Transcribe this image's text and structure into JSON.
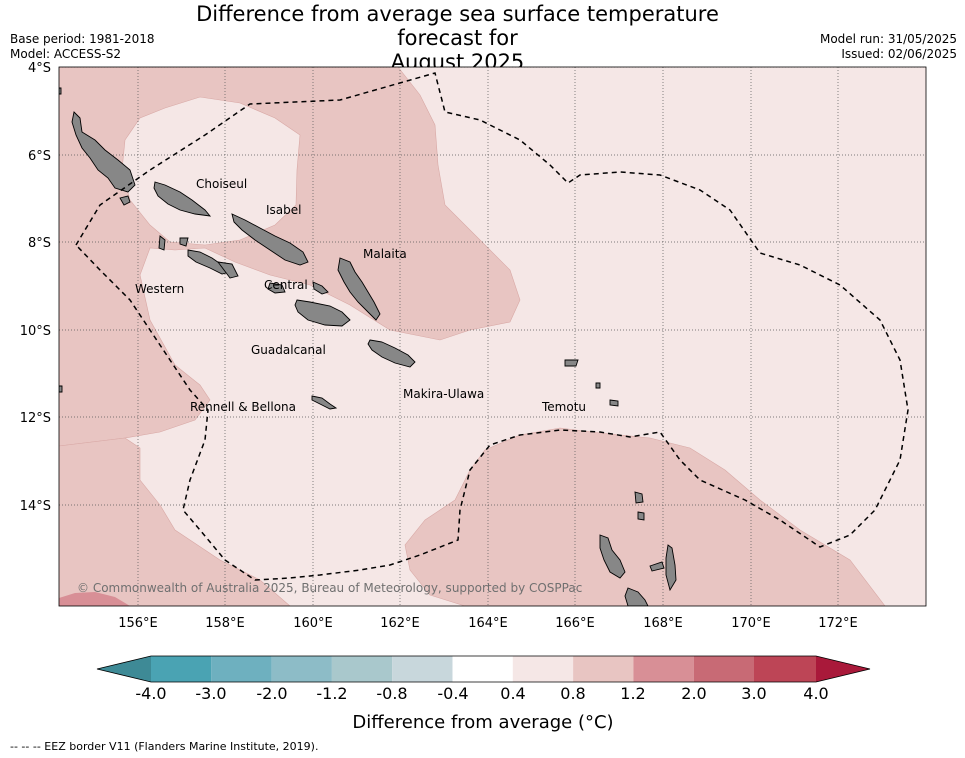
{
  "title_line1": "Difference from average sea surface temperature forecast for",
  "title_line2": "August 2025",
  "meta_left": {
    "base_period": "Base period: 1981-2018",
    "model": "Model: ACCESS-S2"
  },
  "meta_right": {
    "model_run": "Model run: 31/05/2025",
    "issued": "Issued: 02/06/2025"
  },
  "map": {
    "lon_range": [
      154.25,
      174.0
    ],
    "lat_range": [
      -16.25,
      -4.0
    ],
    "lat_labels": [
      "4°S",
      "6°S",
      "8°S",
      "10°S",
      "12°S",
      "14°S"
    ],
    "lon_labels": [
      "156°E",
      "158°E",
      "160°E",
      "162°E",
      "164°E",
      "166°E",
      "168°E",
      "170°E",
      "172°E"
    ],
    "places": [
      "Choiseul",
      "Isabel",
      "Malaita",
      "Western",
      "Central",
      "Guadalcanal",
      "Makira-Ulawa",
      "Rennell & Bellona",
      "Temotu"
    ],
    "copyright": "© Commonwealth of Australia 2025, Bureau of Meteorology, supported by COSPPac",
    "colors": {
      "land": "#878787",
      "band_04_08": "#f5e7e6",
      "band_08_12": "#e8c5c2",
      "band_12_20": "#d88f96"
    }
  },
  "colorbar": {
    "tick_labels": [
      "-4.0",
      "-3.0",
      "-2.0",
      "-1.2",
      "-0.8",
      "-0.4",
      "0.4",
      "0.8",
      "1.2",
      "2.0",
      "3.0",
      "4.0"
    ],
    "colors": [
      "#4aa3b3",
      "#6eb0bf",
      "#8dbcc7",
      "#a9c8cc",
      "#c8d7dc",
      "#ffffff",
      "#f5e7e6",
      "#e8c5c2",
      "#d88f96",
      "#c86a75",
      "#bd4556"
    ],
    "under_color": "#3e8a96",
    "over_color": "#a9193a",
    "label": "Difference from average (°C)"
  },
  "footer": "--  --  -- EEZ border V11 (Flanders Marine Institute, 2019)."
}
